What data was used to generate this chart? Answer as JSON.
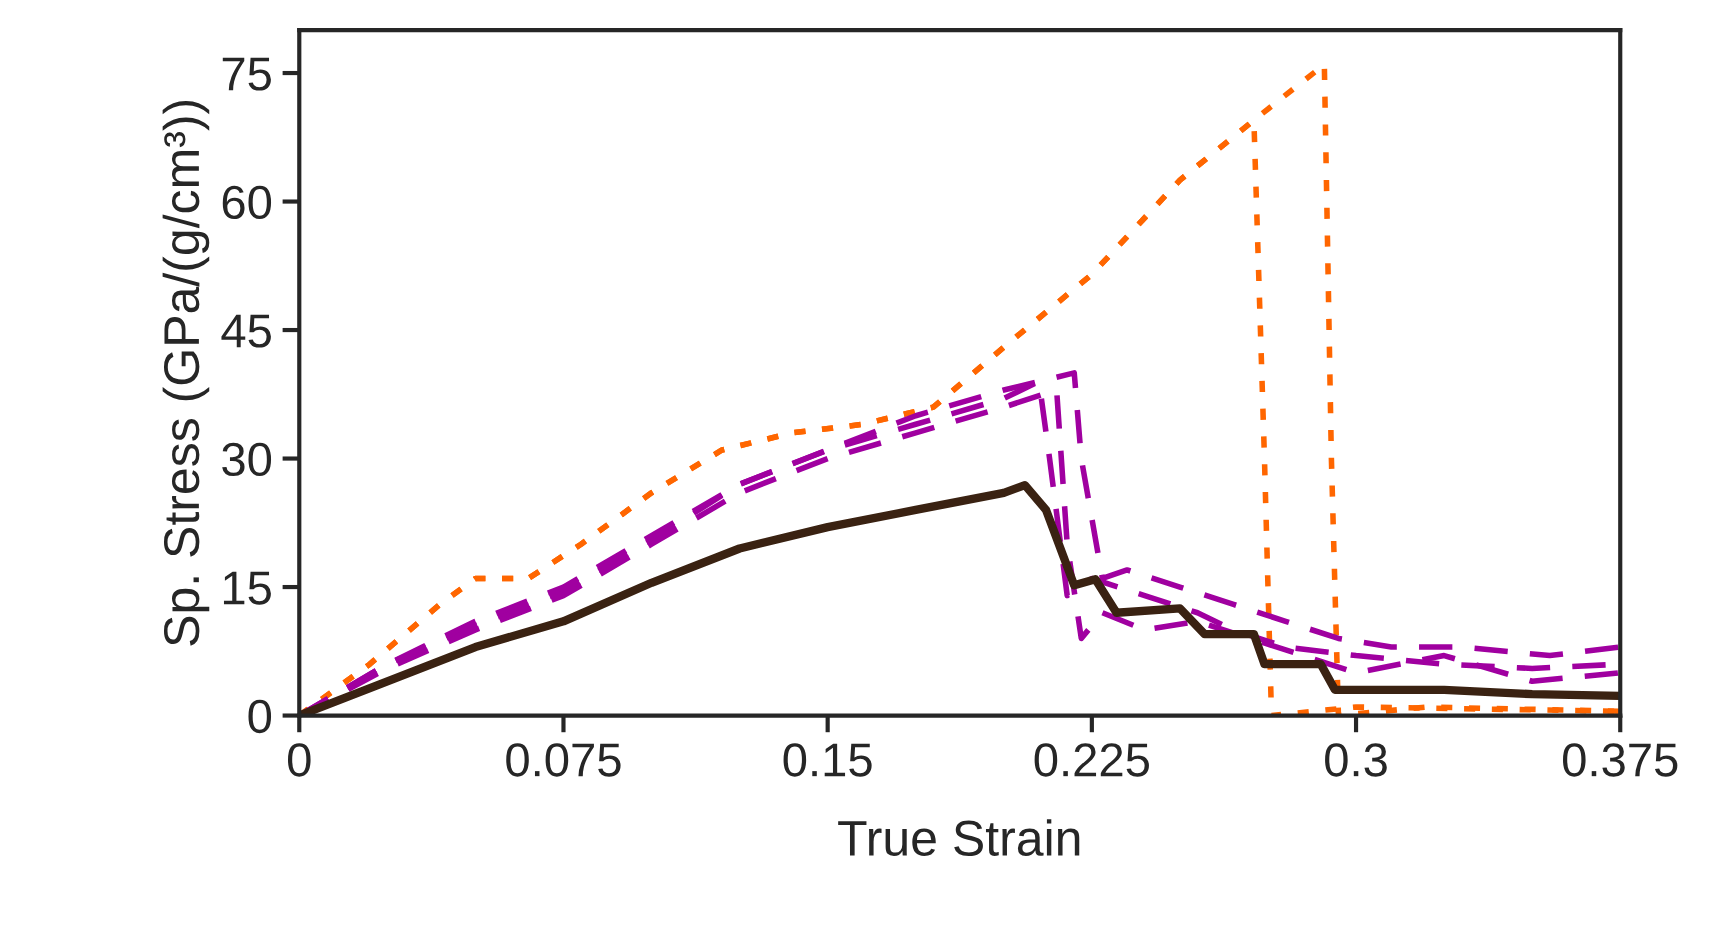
{
  "chart_data": {
    "type": "line",
    "xlabel": "True Strain",
    "ylabel": "Sp. Stress (GPa/(g/cm³))",
    "xlim": [
      0,
      0.375
    ],
    "xticks": [
      0,
      0.075,
      0.15,
      0.225,
      0.3,
      0.375
    ],
    "ylim": [
      0,
      80
    ],
    "yticks": [
      0,
      15,
      30,
      45,
      60,
      75
    ],
    "grid": false,
    "series": [
      {
        "color": "#ff6600",
        "line_style": "dotted",
        "x": [
          0,
          0.02,
          0.04,
          0.05,
          0.065,
          0.08,
          0.1,
          0.12,
          0.14,
          0.16,
          0.18,
          0.2,
          0.225,
          0.25,
          0.271,
          0.274,
          0.276,
          0.3,
          0.375
        ],
        "values": [
          0,
          6,
          13,
          16,
          16,
          20,
          26,
          31,
          33,
          34,
          36,
          43,
          51.5,
          62.5,
          69.5,
          30,
          0,
          1,
          0.5
        ]
      },
      {
        "color": "#ff6600",
        "line_style": "dotted",
        "x": [
          0,
          0.02,
          0.04,
          0.05,
          0.065,
          0.08,
          0.1,
          0.12,
          0.14,
          0.16,
          0.18,
          0.2,
          0.225,
          0.25,
          0.271,
          0.291,
          0.293,
          0.295,
          0.32,
          0.375
        ],
        "values": [
          0,
          6,
          13,
          16,
          16,
          20,
          26,
          31,
          33,
          34,
          36,
          43,
          51.5,
          62.5,
          69.5,
          76,
          30,
          0,
          1,
          0.5
        ]
      },
      {
        "color": "#a000a0",
        "line_style": "dashed",
        "x": [
          0,
          0.025,
          0.05,
          0.075,
          0.1,
          0.125,
          0.15,
          0.175,
          0.2,
          0.21,
          0.213,
          0.218,
          0.225,
          0.24,
          0.255,
          0.265,
          0.28,
          0.3,
          0.325,
          0.35,
          0.375
        ],
        "values": [
          0,
          6,
          10.5,
          14.5,
          20.5,
          27,
          31,
          34,
          37,
          39,
          30,
          14,
          16,
          14,
          12,
          10,
          8,
          7,
          6,
          5.5,
          6
        ]
      },
      {
        "color": "#a000a0",
        "line_style": "dashed",
        "x": [
          0,
          0.025,
          0.05,
          0.075,
          0.1,
          0.125,
          0.15,
          0.175,
          0.2,
          0.215,
          0.218,
          0.222,
          0.228,
          0.24,
          0.255,
          0.27,
          0.285,
          0.3,
          0.325,
          0.35,
          0.375
        ],
        "values": [
          0,
          5.5,
          10,
          14,
          20,
          26,
          30,
          33,
          36,
          38,
          20,
          9,
          12,
          10,
          11,
          9,
          7,
          5,
          7,
          4,
          5
        ]
      },
      {
        "color": "#a000a0",
        "line_style": "dashed",
        "x": [
          0,
          0.025,
          0.05,
          0.075,
          0.1,
          0.125,
          0.15,
          0.175,
          0.2,
          0.22,
          0.222,
          0.228,
          0.235,
          0.25,
          0.265,
          0.28,
          0.295,
          0.31,
          0.33,
          0.355,
          0.375
        ],
        "values": [
          0,
          6,
          11,
          15,
          21,
          27,
          31,
          35,
          38,
          40,
          30,
          16,
          17,
          15,
          13,
          11,
          9,
          8,
          8,
          7,
          8
        ]
      },
      {
        "color": "#3a2212",
        "line_style": "solid",
        "x": [
          0,
          0.025,
          0.05,
          0.075,
          0.1,
          0.125,
          0.15,
          0.175,
          0.2,
          0.206,
          0.212,
          0.22,
          0.226,
          0.232,
          0.25,
          0.257,
          0.271,
          0.274,
          0.29,
          0.294,
          0.325,
          0.35,
          0.375
        ],
        "values": [
          0,
          4,
          8,
          11,
          15.5,
          19.5,
          22,
          24,
          26,
          26.9,
          24,
          15.2,
          15.9,
          12,
          12.5,
          9.5,
          9.5,
          6,
          6,
          3,
          3,
          2.5,
          2.3
        ]
      }
    ]
  }
}
